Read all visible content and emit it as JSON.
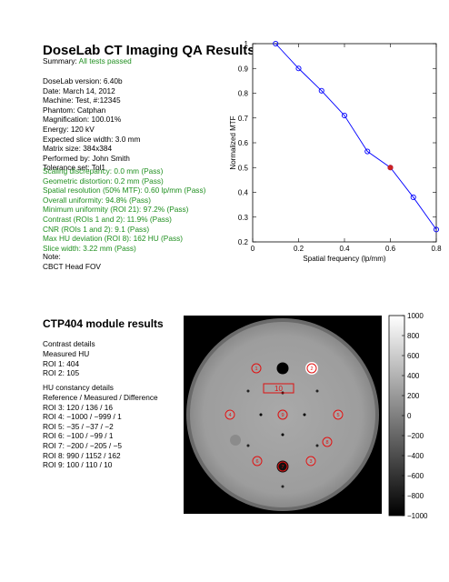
{
  "report": {
    "title": "DoseLab CT Imaging QA Results",
    "summary_label": "Summary:",
    "summary_value": "All tests passed",
    "info": [
      "DoseLab version: 6.40b",
      "Date: March 14, 2012",
      "Machine: Test, #:12345",
      "Phantom: Catphan",
      "Magnification: 100.01%",
      "Energy: 120 kV",
      "Expected slice width: 3.0 mm",
      "Matrix size: 384x384",
      "Performed by: John Smith",
      "Tolerance set: Tol1"
    ],
    "results": [
      "Scaling discrepancy: 0.0 mm (Pass)",
      "Geometric distortion: 0.2 mm (Pass)",
      "Spatial resolution (50% MTF): 0.60 lp/mm (Pass)",
      "Overall uniformity: 94.8% (Pass)",
      "Minimum uniformity (ROI 21): 97.2% (Pass)",
      "Contrast (ROIs 1 and 2): 11.9% (Pass)",
      "CNR (ROIs 1 and 2): 9.1 (Pass)",
      "Max HU deviation (ROI 8): 162 HU (Pass)",
      "Slice width: 3.22 mm (Pass)"
    ],
    "note_label": "Note:",
    "note_text": "CBCT Head FOV"
  },
  "ctp404": {
    "title": "CTP404 module results",
    "contrast_heading": "Contrast details",
    "contrast_lines": [
      "Measured HU",
      "ROI 1: 404",
      "ROI 2: 105"
    ],
    "hu_heading": "HU constancy details",
    "hu_lines": [
      "Reference / Measured / Difference",
      "ROI 3: 120 / 136 / 16",
      "ROI 4: −1000 / −999 / 1",
      "ROI 5: −35 / −37 / −2",
      "ROI 6: −100 / −99 / 1",
      "ROI 7: −200 / −205 / −5",
      "ROI 8: 990 / 1152 / 162",
      "ROI 9: 100 / 110 / 10"
    ],
    "roi_box_label": "10",
    "roi_labels": [
      "1",
      "2",
      "3",
      "4",
      "5",
      "6",
      "7",
      "8",
      "9"
    ]
  },
  "chart_data": {
    "type": "line",
    "xlabel": "Spatial frequency (lp/mm)",
    "ylabel": "Normalized MTF",
    "xlim": [
      0,
      0.8
    ],
    "ylim": [
      0.2,
      1.0
    ],
    "x_ticks": [
      "0",
      "0.2",
      "0.4",
      "0.6",
      "0.8"
    ],
    "y_ticks": [
      "0.2",
      "0.3",
      "0.4",
      "0.5",
      "0.6",
      "0.7",
      "0.8",
      "0.9",
      "1"
    ],
    "series": [
      {
        "x": [
          0.1,
          0.2,
          0.3,
          0.4,
          0.5,
          0.6,
          0.7,
          0.8
        ],
        "y": [
          1.0,
          0.9,
          0.81,
          0.71,
          0.565,
          0.5,
          0.38,
          0.25
        ],
        "color": "#0000ff"
      }
    ],
    "highlight": {
      "x": 0.6,
      "y": 0.5,
      "color": "#cc2222"
    },
    "grid": false
  },
  "colorbar": {
    "ticks": [
      "1000",
      "800",
      "600",
      "400",
      "200",
      "0",
      "−200",
      "−400",
      "−600",
      "−800",
      "−1000"
    ]
  }
}
